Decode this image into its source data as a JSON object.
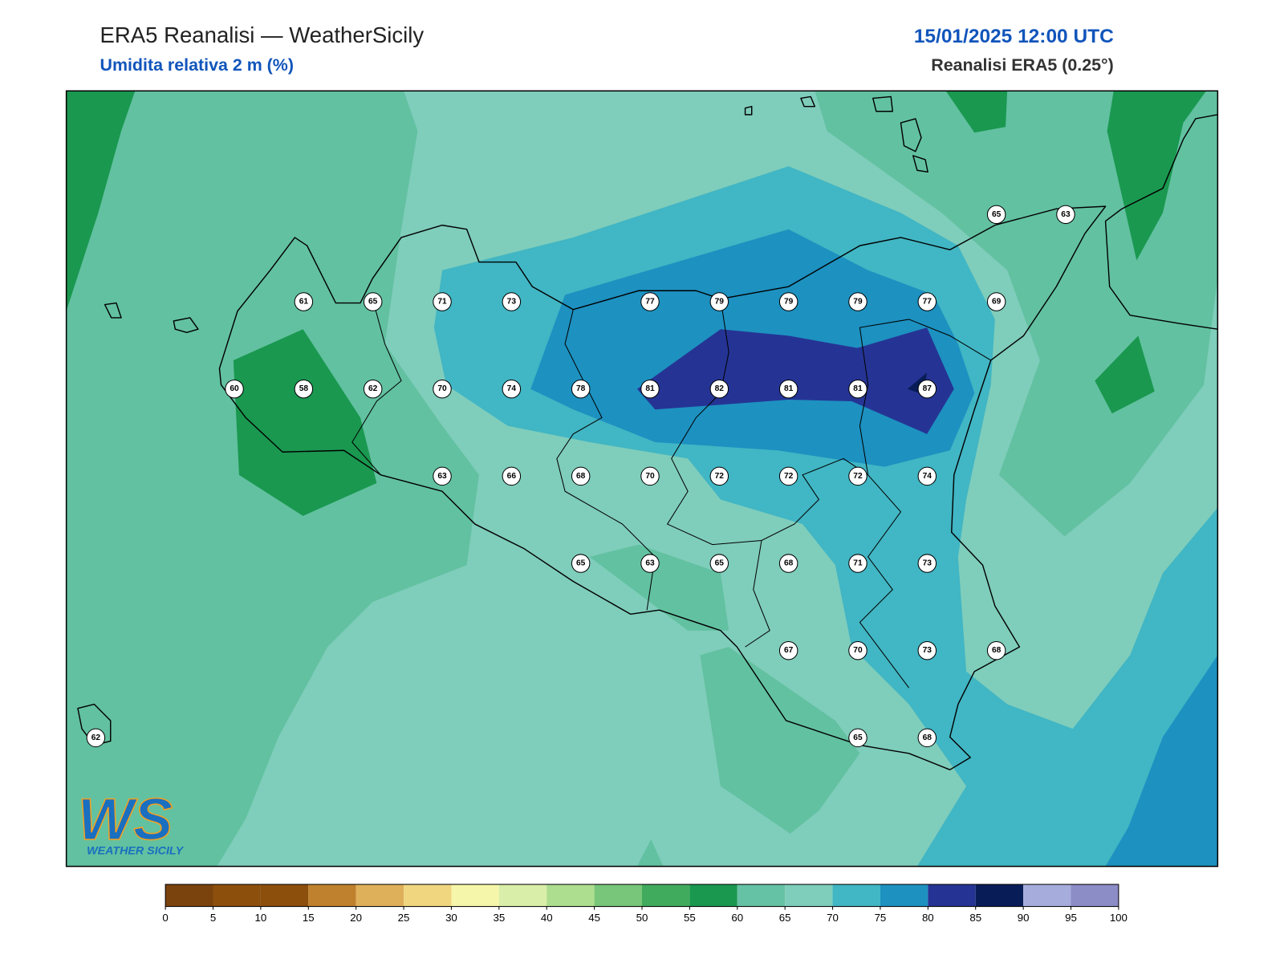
{
  "header": {
    "title": "ERA5 Reanalisi — WeatherSicily",
    "subtitle": "Umidita relativa 2 m (%)",
    "datetime": "15/01/2025 12:00 UTC",
    "source": "Reanalisi ERA5 (0.25°)"
  },
  "stations": [
    65,
    63,
    61,
    65,
    71,
    73,
    77,
    79,
    79,
    79,
    77,
    69,
    60,
    58,
    62,
    70,
    74,
    78,
    81,
    82,
    81,
    81,
    87,
    63,
    66,
    68,
    70,
    72,
    72,
    72,
    74,
    65,
    63,
    65,
    68,
    71,
    73,
    67,
    70,
    73,
    68,
    62,
    65,
    68
  ],
  "colorbar": {
    "ticks": [
      0,
      5,
      10,
      15,
      20,
      25,
      30,
      35,
      40,
      45,
      50,
      55,
      60,
      65,
      70,
      75,
      80,
      85,
      90,
      95,
      100
    ],
    "colors": [
      "#7a420d",
      "#8c4f0c",
      "#8c4f0c",
      "#bf812d",
      "#dfb05a",
      "#f0d77f",
      "#f6f6aa",
      "#d9eea8",
      "#addd8e",
      "#78c679",
      "#41ab5d",
      "#1a9850",
      "#66c2a4",
      "#7fcdbb",
      "#41b6c4",
      "#1d91c0",
      "#253494",
      "#081d58",
      "#a6acdc",
      "#8c8cc7"
    ]
  },
  "logo": {
    "mark": "WS",
    "text": "WEATHER SICILY"
  }
}
